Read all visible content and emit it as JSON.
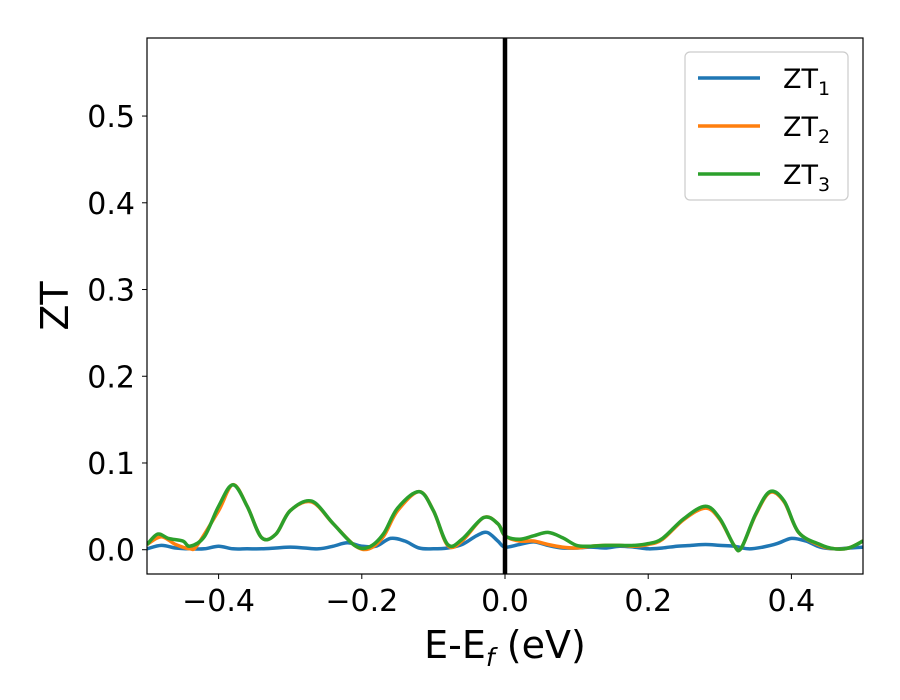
{
  "chart_data": {
    "type": "line",
    "xlabel": "E-E",
    "xlabel_sub": "f",
    "xlabel_unit": " (eV)",
    "ylabel": "ZT",
    "xlim": [
      -0.5,
      0.5
    ],
    "ylim": [
      -0.028,
      0.59
    ],
    "xticks": [
      -0.4,
      -0.2,
      0.0,
      0.2,
      0.4
    ],
    "xtick_labels": [
      "−0.4",
      "−0.2",
      "0.0",
      "0.2",
      "0.4"
    ],
    "yticks": [
      0.0,
      0.1,
      0.2,
      0.3,
      0.4,
      0.5
    ],
    "ytick_labels": [
      "0.0",
      "0.1",
      "0.2",
      "0.3",
      "0.4",
      "0.5"
    ],
    "vline_x": 0.0,
    "vline_color": "#000000",
    "grid": false,
    "legend_position": "top-right",
    "series": [
      {
        "name": "ZT",
        "name_sub": "1",
        "color": "#1f77b4",
        "points": [
          [
            -0.5,
            0.001
          ],
          [
            -0.48,
            0.005
          ],
          [
            -0.46,
            0.002
          ],
          [
            -0.44,
            0.001
          ],
          [
            -0.42,
            0.001
          ],
          [
            -0.4,
            0.004
          ],
          [
            -0.38,
            0.001
          ],
          [
            -0.36,
            0.001
          ],
          [
            -0.34,
            0.001
          ],
          [
            -0.32,
            0.002
          ],
          [
            -0.3,
            0.003
          ],
          [
            -0.28,
            0.002
          ],
          [
            -0.26,
            0.001
          ],
          [
            -0.24,
            0.004
          ],
          [
            -0.22,
            0.008
          ],
          [
            -0.2,
            0.004
          ],
          [
            -0.18,
            0.004
          ],
          [
            -0.16,
            0.013
          ],
          [
            -0.14,
            0.01
          ],
          [
            -0.12,
            0.002
          ],
          [
            -0.1,
            0.001
          ],
          [
            -0.08,
            0.002
          ],
          [
            -0.06,
            0.006
          ],
          [
            -0.04,
            0.016
          ],
          [
            -0.025,
            0.02
          ],
          [
            -0.01,
            0.01
          ],
          [
            0.0,
            0.003
          ],
          [
            0.02,
            0.006
          ],
          [
            0.04,
            0.009
          ],
          [
            0.06,
            0.005
          ],
          [
            0.08,
            0.002
          ],
          [
            0.1,
            0.002
          ],
          [
            0.12,
            0.003
          ],
          [
            0.14,
            0.002
          ],
          [
            0.16,
            0.004
          ],
          [
            0.18,
            0.003
          ],
          [
            0.2,
            0.001
          ],
          [
            0.22,
            0.002
          ],
          [
            0.24,
            0.004
          ],
          [
            0.26,
            0.005
          ],
          [
            0.28,
            0.006
          ],
          [
            0.3,
            0.005
          ],
          [
            0.32,
            0.004
          ],
          [
            0.34,
            0.001
          ],
          [
            0.36,
            0.003
          ],
          [
            0.38,
            0.007
          ],
          [
            0.4,
            0.013
          ],
          [
            0.42,
            0.01
          ],
          [
            0.44,
            0.003
          ],
          [
            0.46,
            0.001
          ],
          [
            0.48,
            0.002
          ],
          [
            0.5,
            0.003
          ]
        ]
      },
      {
        "name": "ZT",
        "name_sub": "2",
        "color": "#ff7f0e",
        "points": [
          [
            -0.5,
            0.006
          ],
          [
            -0.48,
            0.015
          ],
          [
            -0.46,
            0.006
          ],
          [
            -0.44,
            0.001
          ],
          [
            -0.43,
            0.005
          ],
          [
            -0.4,
            0.045
          ],
          [
            -0.38,
            0.075
          ],
          [
            -0.36,
            0.05
          ],
          [
            -0.34,
            0.014
          ],
          [
            -0.32,
            0.018
          ],
          [
            -0.3,
            0.045
          ],
          [
            -0.27,
            0.055
          ],
          [
            -0.24,
            0.03
          ],
          [
            -0.21,
            0.005
          ],
          [
            -0.19,
            0.001
          ],
          [
            -0.17,
            0.015
          ],
          [
            -0.15,
            0.045
          ],
          [
            -0.12,
            0.067
          ],
          [
            -0.1,
            0.045
          ],
          [
            -0.08,
            0.005
          ],
          [
            -0.06,
            0.01
          ],
          [
            -0.03,
            0.037
          ],
          [
            -0.01,
            0.03
          ],
          [
            0.0,
            0.016
          ],
          [
            0.02,
            0.01
          ],
          [
            0.04,
            0.01
          ],
          [
            0.06,
            0.006
          ],
          [
            0.08,
            0.003
          ],
          [
            0.1,
            0.002
          ],
          [
            0.12,
            0.004
          ],
          [
            0.14,
            0.005
          ],
          [
            0.16,
            0.005
          ],
          [
            0.18,
            0.004
          ],
          [
            0.2,
            0.006
          ],
          [
            0.22,
            0.012
          ],
          [
            0.25,
            0.035
          ],
          [
            0.28,
            0.048
          ],
          [
            0.3,
            0.035
          ],
          [
            0.32,
            0.005
          ],
          [
            0.33,
            0.002
          ],
          [
            0.35,
            0.04
          ],
          [
            0.37,
            0.066
          ],
          [
            0.39,
            0.055
          ],
          [
            0.41,
            0.02
          ],
          [
            0.44,
            0.005
          ],
          [
            0.46,
            0.001
          ],
          [
            0.48,
            0.002
          ],
          [
            0.5,
            0.01
          ]
        ]
      },
      {
        "name": "ZT",
        "name_sub": "3",
        "color": "#2ca02c",
        "points": [
          [
            -0.5,
            0.006
          ],
          [
            -0.485,
            0.018
          ],
          [
            -0.47,
            0.013
          ],
          [
            -0.45,
            0.01
          ],
          [
            -0.44,
            0.004
          ],
          [
            -0.42,
            0.015
          ],
          [
            -0.4,
            0.05
          ],
          [
            -0.38,
            0.075
          ],
          [
            -0.36,
            0.05
          ],
          [
            -0.34,
            0.014
          ],
          [
            -0.32,
            0.018
          ],
          [
            -0.3,
            0.045
          ],
          [
            -0.27,
            0.056
          ],
          [
            -0.24,
            0.03
          ],
          [
            -0.21,
            0.005
          ],
          [
            -0.19,
            0.003
          ],
          [
            -0.17,
            0.018
          ],
          [
            -0.15,
            0.048
          ],
          [
            -0.12,
            0.067
          ],
          [
            -0.1,
            0.045
          ],
          [
            -0.08,
            0.006
          ],
          [
            -0.06,
            0.012
          ],
          [
            -0.03,
            0.037
          ],
          [
            -0.01,
            0.03
          ],
          [
            0.0,
            0.016
          ],
          [
            0.02,
            0.012
          ],
          [
            0.04,
            0.016
          ],
          [
            0.06,
            0.02
          ],
          [
            0.08,
            0.014
          ],
          [
            0.1,
            0.005
          ],
          [
            0.12,
            0.004
          ],
          [
            0.14,
            0.005
          ],
          [
            0.16,
            0.005
          ],
          [
            0.18,
            0.005
          ],
          [
            0.2,
            0.007
          ],
          [
            0.22,
            0.013
          ],
          [
            0.25,
            0.036
          ],
          [
            0.28,
            0.05
          ],
          [
            0.3,
            0.036
          ],
          [
            0.32,
            0.005
          ],
          [
            0.33,
            0.002
          ],
          [
            0.35,
            0.041
          ],
          [
            0.37,
            0.067
          ],
          [
            0.39,
            0.056
          ],
          [
            0.41,
            0.02
          ],
          [
            0.44,
            0.006
          ],
          [
            0.46,
            0.001
          ],
          [
            0.48,
            0.002
          ],
          [
            0.5,
            0.01
          ]
        ]
      }
    ]
  }
}
